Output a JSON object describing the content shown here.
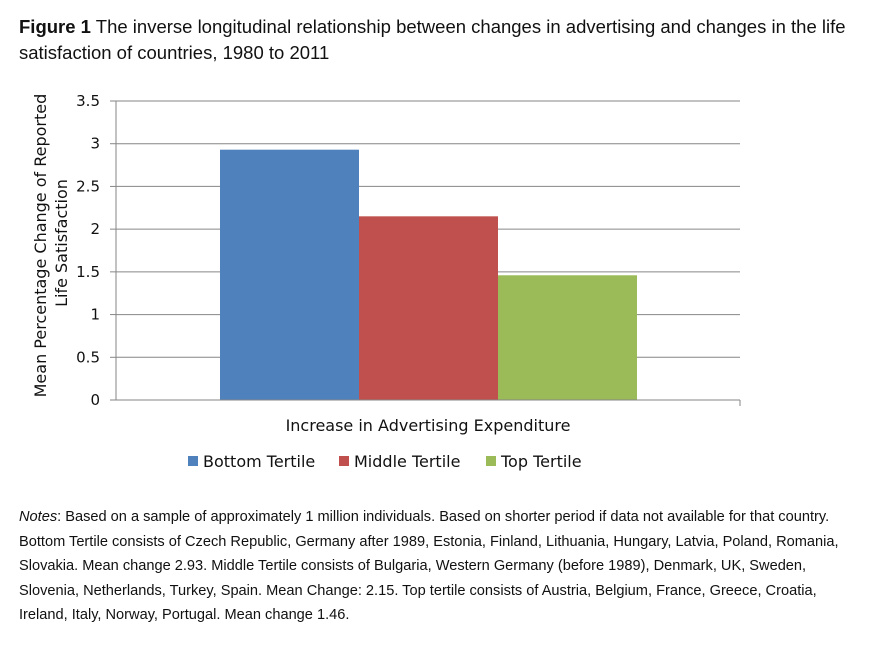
{
  "figure": {
    "label": "Figure 1",
    "title": "The inverse longitudinal relationship between changes in advertising and changes in the life satisfaction of countries, 1980 to 2011"
  },
  "chart_data": {
    "type": "bar",
    "xlabel": "Increase in Advertising Expenditure",
    "ylabel_lines": [
      "Mean Percentage Change of Reported",
      "Life Satisfaction"
    ],
    "ylim": [
      0,
      3.5
    ],
    "yticks": [
      "0",
      "0.5",
      "1",
      "1.5",
      "2",
      "2.5",
      "3",
      "3.5"
    ],
    "grid": true,
    "legend_position": "bottom",
    "series": [
      {
        "name": "Bottom Tertile",
        "value": 2.93,
        "color": "#4F81BD"
      },
      {
        "name": "Middle Tertile",
        "value": 2.15,
        "color": "#C0504D"
      },
      {
        "name": "Top Tertile",
        "value": 1.46,
        "color": "#9BBB59"
      }
    ]
  },
  "notes": {
    "label": "Notes",
    "text": ": Based on a sample of approximately 1 million individuals. Based on shorter period if data not available for that country. Bottom Tertile consists of Czech Republic, Germany after 1989, Estonia, Finland, Lithuania, Hungary, Latvia, Poland, Romania, Slovakia. Mean change 2.93. Middle Tertile consists of Bulgaria, Western Germany (before 1989), Denmark, UK, Sweden, Slovenia, Netherlands, Turkey, Spain. Mean Change: 2.15. Top tertile consists of Austria, Belgium, France, Greece, Croatia, Ireland, Italy, Norway, Portugal. Mean change 1.46."
  }
}
